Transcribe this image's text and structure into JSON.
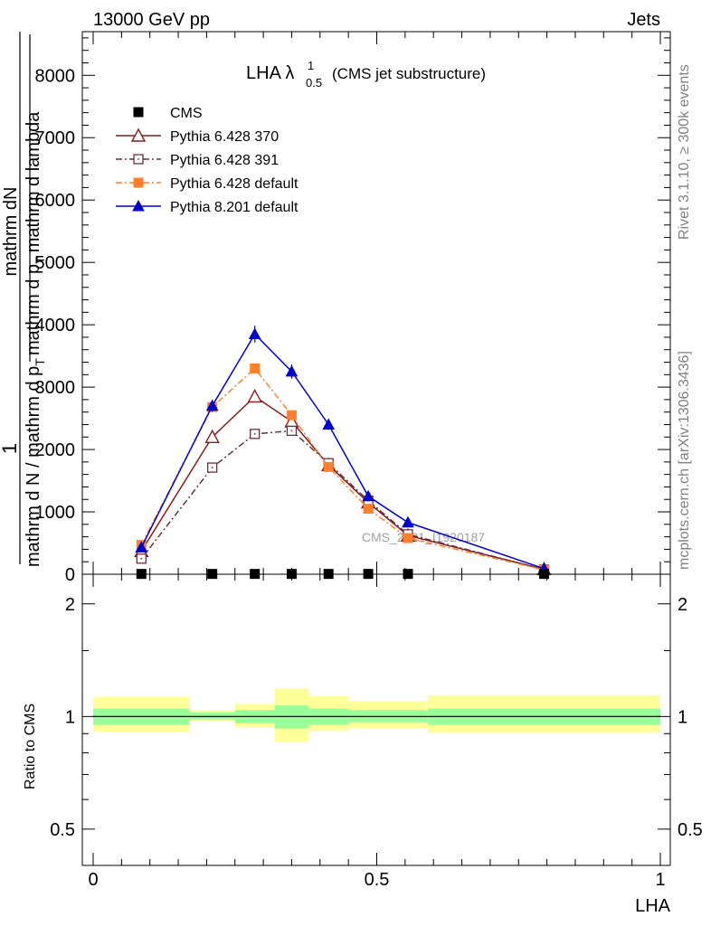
{
  "header": {
    "left": "13000 GeV pp",
    "right": "Jets"
  },
  "side_text": {
    "rivet": "Rivet 3.1.10, ≥ 300k events",
    "mcplots": "mcplots.cern.ch [arXiv:1306.3436]"
  },
  "watermark": "CMS_2021_I1920187",
  "chart_data": [
    {
      "type": "line",
      "title": "LHA λ",
      "title_sup": "1",
      "title_sub": "0.5",
      "title_suffix": "(CMS jet substructure)",
      "ylabel_parts": {
        "one": "1",
        "den": "mathrm d N / mathrm d p",
        "den_sub": "T",
        "num": "mathrm dN",
        "num_den": "mathrm d p",
        "num_den_sub": "T",
        "num_den_tail": "mathrm d lambda"
      },
      "xlim": [
        0,
        1
      ],
      "ylim": [
        0,
        8700
      ],
      "y_ticks": [
        0,
        1000,
        2000,
        3000,
        4000,
        5000,
        6000,
        7000,
        8000
      ],
      "y_tick_labels": [
        "0",
        "1000",
        "2000",
        "3000",
        "4000",
        "5000",
        "6000",
        "7000",
        "8000"
      ],
      "x": [
        0.085,
        0.21,
        0.285,
        0.35,
        0.415,
        0.485,
        0.555,
        0.795
      ],
      "series": [
        {
          "name": "CMS",
          "color": "#000000",
          "marker": "square",
          "values": [
            5,
            5,
            5,
            5,
            5,
            5,
            5,
            5
          ]
        },
        {
          "name": "Pythia 6.428 370",
          "color": "#8b1a1a",
          "marker": "triangle-open",
          "dash": "solid",
          "values": [
            370,
            2200,
            2850,
            2450,
            1750,
            1150,
            620,
            80
          ]
        },
        {
          "name": "Pythia 6.428 391",
          "color": "#6b2f3f",
          "marker": "square-open",
          "dash": "dashdot",
          "values": [
            250,
            1710,
            2250,
            2300,
            1780,
            1180,
            640,
            75
          ]
        },
        {
          "name": "Pythia 6.428 default",
          "color": "#ff7f2a",
          "marker": "square",
          "dash": "dashdot",
          "values": [
            470,
            2680,
            3300,
            2550,
            1720,
            1050,
            580,
            70
          ]
        },
        {
          "name": "Pythia 8.201 default",
          "color": "#0000cc",
          "marker": "triangle",
          "dash": "solid",
          "values": [
            430,
            2700,
            3850,
            3250,
            2400,
            1250,
            830,
            90
          ]
        }
      ]
    },
    {
      "type": "area",
      "ylabel": "Ratio to CMS",
      "xlabel": "LHA",
      "xlim": [
        0,
        1
      ],
      "ylim": [
        0.4,
        2.4
      ],
      "y_scale": "log",
      "y_ticks": [
        0.5,
        1,
        2
      ],
      "y_tick_labels": [
        "0.5",
        "1",
        "2"
      ],
      "x_ticks": [
        0,
        0.5,
        1
      ],
      "x_tick_labels": [
        "0",
        "0.5",
        "1"
      ],
      "reference": 1,
      "bins": [
        {
          "x0": 0.0,
          "x1": 0.17,
          "inner": [
            0.95,
            1.05
          ],
          "outer": [
            0.91,
            1.13
          ]
        },
        {
          "x0": 0.17,
          "x1": 0.25,
          "inner": [
            0.985,
            1.025
          ],
          "outer": [
            0.975,
            1.04
          ]
        },
        {
          "x0": 0.25,
          "x1": 0.32,
          "inner": [
            0.96,
            1.04
          ],
          "outer": [
            0.935,
            1.08
          ]
        },
        {
          "x0": 0.32,
          "x1": 0.38,
          "inner": [
            0.93,
            1.07
          ],
          "outer": [
            0.855,
            1.19
          ]
        },
        {
          "x0": 0.38,
          "x1": 0.45,
          "inner": [
            0.95,
            1.05
          ],
          "outer": [
            0.915,
            1.135
          ]
        },
        {
          "x0": 0.45,
          "x1": 0.59,
          "inner": [
            0.965,
            1.04
          ],
          "outer": [
            0.93,
            1.1
          ]
        },
        {
          "x0": 0.59,
          "x1": 1.0,
          "inner": [
            0.95,
            1.05
          ],
          "outer": [
            0.905,
            1.14
          ]
        }
      ],
      "colors": {
        "inner": "#99ff99",
        "outer": "#ffff99",
        "line": "#000000"
      }
    }
  ]
}
